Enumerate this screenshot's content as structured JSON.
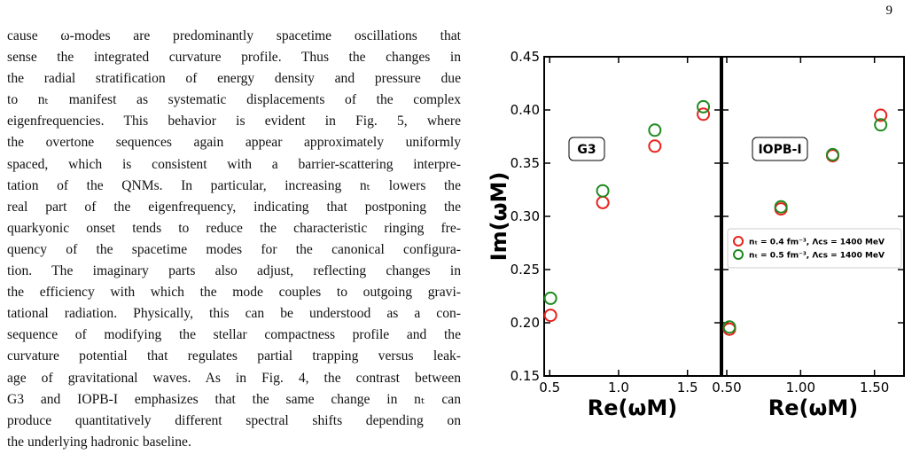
{
  "page_number": "9",
  "body": {
    "lines": [
      "cause ω-modes are predominantly spacetime oscillations that",
      "sense the integrated curvature profile. Thus the changes in",
      "the radial stratification of energy density and pressure due",
      "to nₜ manifest as systematic displacements of the complex",
      "eigenfrequencies. This behavior is evident in Fig. 5, where",
      "the overtone sequences again appear approximately uniformly",
      "spaced, which is consistent with a barrier-scattering interpre-",
      "tation of the QNMs. In particular, increasing nₜ lowers the",
      "real part of the eigenfrequency, indicating that postponing the",
      "quarkyonic onset tends to reduce the characteristic ringing fre-",
      "quency of the spacetime modes for the canonical configura-",
      "tion. The imaginary parts also adjust, reflecting changes in",
      "the efficiency with which the mode couples to outgoing gravi-",
      "tational radiation. Physically, this can be understood as a con-",
      "sequence of modifying the stellar compactness profile and the",
      "curvature potential that regulates partial trapping versus leak-",
      "age of gravitational waves. As in Fig. 4, the contrast between",
      "G3 and IOPB-I emphasizes that the same change in nₜ can",
      "produce quantitatively different spectral shifts depending on",
      "the underlying hadronic baseline."
    ]
  },
  "chart_data": [
    {
      "type": "scatter",
      "annotation": "G3",
      "ylabel": "Im(ωM)",
      "xlabel": "Re(ωM)",
      "x": [
        0.506,
        0.885,
        1.263,
        1.615
      ],
      "xlim": [
        0.46,
        1.74
      ],
      "xticks": [
        0.5,
        {
          "value": 1,
          "label": "1.0"
        },
        1.5
      ],
      "ylim": [
        0.15,
        0.45
      ],
      "yticks": [
        0.15,
        {
          "value": 0.2,
          "label": "0.20"
        },
        0.25,
        {
          "value": 0.3,
          "label": "0.30"
        },
        0.35,
        {
          "value": 0.4,
          "label": "0.40"
        },
        0.45
      ],
      "series": [
        {
          "color": "#e8211c",
          "values": [
            0.207,
            0.313,
            0.366,
            0.396
          ]
        },
        {
          "color": "#1e8a1e",
          "values": [
            0.223,
            0.324,
            0.381,
            0.403
          ]
        }
      ]
    },
    {
      "type": "scatter",
      "annotation": "IOPB-I",
      "xlabel": "Re(ωM)",
      "x": [
        0.518,
        0.867,
        1.217,
        1.542
      ],
      "xlim": [
        0.47,
        1.7
      ],
      "xticks": [
        {
          "value": 0.5,
          "label": "0.50"
        },
        {
          "value": 1,
          "label": "1.00"
        },
        {
          "value": 1.5,
          "label": "1.50"
        }
      ],
      "ylim": [
        0.15,
        0.45
      ],
      "yticks": [
        0.15,
        0.2,
        0.25,
        0.3,
        0.35,
        0.4,
        0.45
      ],
      "legend": "center right",
      "series": [
        {
          "name": "nₜ = 0.4 fm⁻³,  Λcs = 1400 MeV",
          "color": "#e8211c",
          "values": [
            0.194,
            0.307,
            0.357,
            0.395
          ]
        },
        {
          "name": "nₜ = 0.5 fm⁻³,  Λcs = 1400 MeV",
          "color": "#1e8a1e",
          "values": [
            0.196,
            0.309,
            0.358,
            0.386
          ]
        }
      ]
    }
  ]
}
